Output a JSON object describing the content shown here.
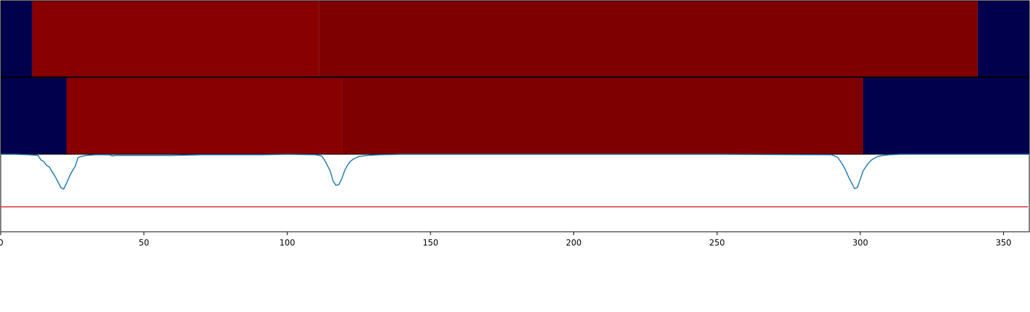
{
  "chart_data": [
    {
      "type": "heatmap",
      "description_row": 1,
      "segments": [
        {
          "start": 0,
          "end": 11,
          "color": "#00004d"
        },
        {
          "start": 11,
          "end": 111,
          "color": "#880000"
        },
        {
          "start": 111,
          "end": 341,
          "color": "#7f0000"
        },
        {
          "start": 341,
          "end": 360,
          "color": "#00004d"
        }
      ]
    },
    {
      "type": "heatmap",
      "description_row": 2,
      "segments": [
        {
          "start": 0,
          "end": 23,
          "color": "#00004d"
        },
        {
          "start": 23,
          "end": 119,
          "color": "#880000"
        },
        {
          "start": 119,
          "end": 301,
          "color": "#7f0000"
        },
        {
          "start": 301,
          "end": 360,
          "color": "#00004d"
        }
      ]
    },
    {
      "type": "line",
      "xlim": [
        0,
        359
      ],
      "ylim": [
        -1.4,
        0
      ],
      "xticks": [
        0,
        50,
        100,
        150,
        200,
        250,
        300,
        350
      ],
      "grid": false,
      "colors": {
        "line": "#1f77b4",
        "threshold": "#d62728"
      },
      "threshold": -0.95,
      "series": [
        {
          "x": [
            0,
            5,
            10,
            13,
            14,
            15,
            16,
            17,
            18,
            19,
            20,
            21,
            22,
            23,
            24,
            25,
            26,
            27,
            28,
            30,
            33,
            38,
            39,
            40,
            50,
            60,
            70,
            80,
            90,
            100,
            110,
            112,
            113,
            114,
            115,
            116,
            117,
            118,
            119,
            120,
            121,
            122,
            123,
            125,
            128,
            132,
            140,
            160,
            200,
            250,
            290,
            292,
            293,
            294,
            295,
            296,
            297,
            298,
            299,
            300,
            301,
            302,
            303,
            304,
            305,
            306,
            307,
            308,
            310,
            314,
            320,
            326,
            340,
            359
          ],
          "y": [
            0,
            0,
            -0.01,
            -0.02,
            -0.1,
            -0.13,
            -0.2,
            -0.23,
            -0.32,
            -0.4,
            -0.5,
            -0.6,
            -0.63,
            -0.52,
            -0.4,
            -0.3,
            -0.22,
            -0.06,
            -0.04,
            -0.02,
            -0.01,
            -0.01,
            -0.03,
            -0.02,
            -0.02,
            -0.02,
            -0.01,
            -0.01,
            -0.01,
            0,
            -0.01,
            -0.03,
            -0.1,
            -0.2,
            -0.3,
            -0.48,
            -0.56,
            -0.55,
            -0.45,
            -0.3,
            -0.2,
            -0.13,
            -0.09,
            -0.04,
            -0.02,
            -0.01,
            0,
            0,
            0,
            0,
            -0.01,
            -0.05,
            -0.12,
            -0.2,
            -0.3,
            -0.42,
            -0.52,
            -0.62,
            -0.6,
            -0.45,
            -0.3,
            -0.22,
            -0.15,
            -0.1,
            -0.07,
            -0.04,
            -0.03,
            -0.02,
            -0.01,
            0,
            0,
            0,
            0,
            0
          ]
        }
      ]
    }
  ]
}
